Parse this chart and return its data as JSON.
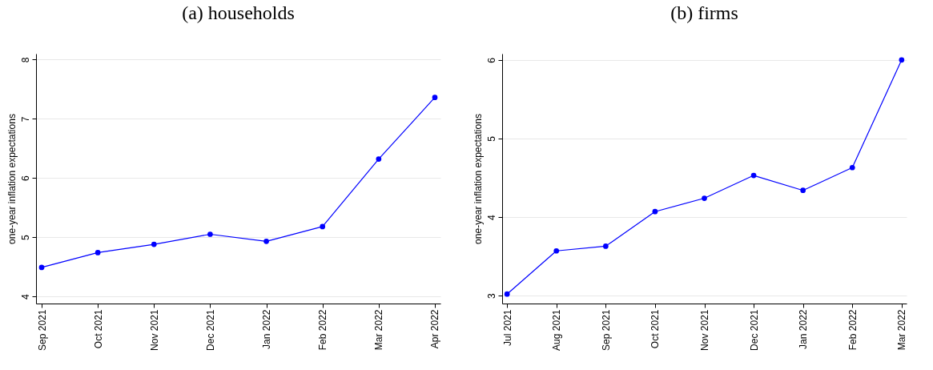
{
  "chart_data": [
    {
      "type": "line",
      "title": "(a) households",
      "ylabel": "one-year inflation expectations",
      "categories": [
        "Sep 2021",
        "Oct 2021",
        "Nov 2021",
        "Dec 2021",
        "Jan 2022",
        "Feb 2022",
        "Mar 2022",
        "Apr 2022"
      ],
      "series": [
        {
          "color": "#0000ff",
          "values": [
            4.49,
            4.74,
            4.88,
            5.05,
            4.93,
            5.18,
            6.32,
            7.36
          ]
        }
      ],
      "ylim": [
        3.88,
        8.1
      ],
      "yticks": [
        4,
        5,
        6,
        7,
        8
      ],
      "grid": "y",
      "marker": "circle",
      "line_style": "solid"
    },
    {
      "type": "line",
      "title": "(b) firms",
      "ylabel": "one-year inflation expectations",
      "categories": [
        "Jul 2021",
        "Aug 2021",
        "Sep 2021",
        "Oct 2021",
        "Nov 2021",
        "Dec 2021",
        "Jan 2022",
        "Feb 2022",
        "Mar 2022"
      ],
      "series": [
        {
          "color": "#0000ff",
          "values": [
            3.02,
            3.57,
            3.63,
            4.07,
            4.24,
            4.53,
            4.34,
            4.63,
            6.0
          ]
        }
      ],
      "ylim": [
        2.9,
        6.08
      ],
      "yticks": [
        3,
        4,
        5,
        6
      ],
      "grid": "y",
      "marker": "circle",
      "line_style": "solid"
    }
  ]
}
